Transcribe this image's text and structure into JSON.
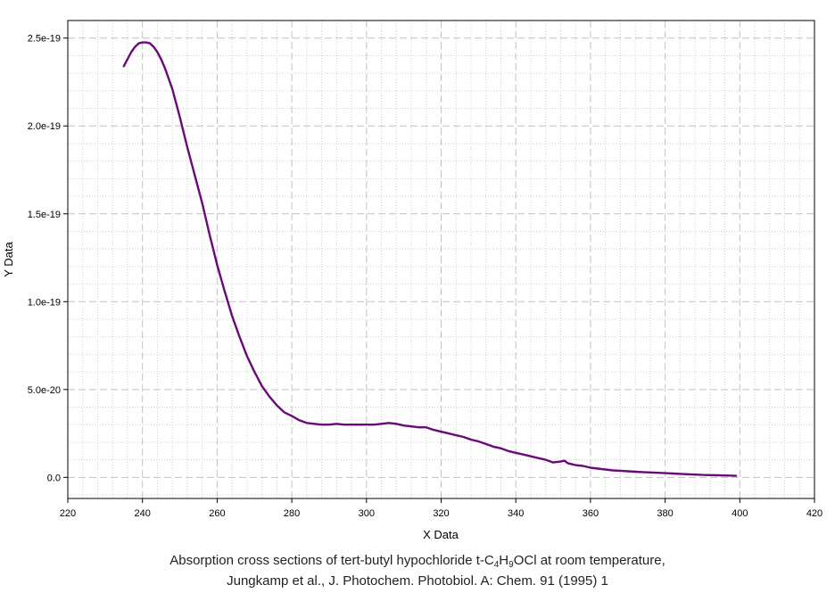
{
  "chart_data": {
    "type": "line",
    "xlabel": "X Data",
    "ylabel": "Y Data",
    "xlim": [
      220,
      420
    ],
    "ylim": [
      -1.2e-20,
      2.6e-19
    ],
    "x_ticks": [
      220,
      240,
      260,
      280,
      300,
      320,
      340,
      360,
      380,
      400,
      420
    ],
    "x_tick_labels": [
      "220",
      "240",
      "260",
      "280",
      "300",
      "320",
      "340",
      "360",
      "380",
      "400",
      "420"
    ],
    "y_ticks": [
      0,
      5e-20,
      1e-19,
      1.5e-19,
      2e-19,
      2.5e-19
    ],
    "y_tick_labels": [
      "0.0",
      "5.0e-20",
      "1.0e-19",
      "1.5e-19",
      "2.0e-19",
      "2.5e-19"
    ],
    "grid": true,
    "line_color": "#6a0a78",
    "series": [
      {
        "x": [
          235,
          237,
          238,
          239,
          240,
          241,
          242,
          243,
          244,
          245,
          246,
          247,
          248,
          249,
          250,
          252,
          254,
          256,
          258,
          260,
          262,
          264,
          266,
          268,
          270,
          272,
          274,
          276,
          278,
          280,
          282,
          284,
          286,
          288,
          290,
          292,
          294,
          296,
          298,
          300,
          302,
          304,
          306,
          308,
          310,
          312,
          314,
          316,
          318,
          320,
          322,
          324,
          326,
          328,
          330,
          332,
          334,
          336,
          338,
          340,
          342,
          344,
          346,
          348,
          350,
          352,
          353,
          354,
          356,
          358,
          360,
          362,
          364,
          366,
          368,
          370,
          372,
          374,
          376,
          378,
          380,
          382,
          384,
          386,
          388,
          390,
          392,
          394,
          396,
          398,
          399
        ],
        "y": [
          2.34e-19,
          2.42e-19,
          2.45e-19,
          2.47e-19,
          2.475e-19,
          2.475e-19,
          2.47e-19,
          2.45e-19,
          2.42e-19,
          2.38e-19,
          2.33e-19,
          2.27e-19,
          2.21e-19,
          2.13e-19,
          2.05e-19,
          1.88e-19,
          1.72e-19,
          1.56e-19,
          1.38e-19,
          1.21e-19,
          1.06e-19,
          9.2e-20,
          8e-20,
          6.9e-20,
          6e-20,
          5.2e-20,
          4.6e-20,
          4.1e-20,
          3.7e-20,
          3.5e-20,
          3.25e-20,
          3.1e-20,
          3.05e-20,
          3e-20,
          3e-20,
          3.05e-20,
          3e-20,
          3e-20,
          3e-20,
          3e-20,
          3e-20,
          3.05e-20,
          3.1e-20,
          3.05e-20,
          2.95e-20,
          2.9e-20,
          2.85e-20,
          2.85e-20,
          2.7e-20,
          2.6e-20,
          2.5e-20,
          2.4e-20,
          2.3e-20,
          2.15e-20,
          2.05e-20,
          1.9e-20,
          1.75e-20,
          1.65e-20,
          1.5e-20,
          1.4e-20,
          1.3e-20,
          1.2e-20,
          1.1e-20,
          1e-20,
          8.5e-21,
          9e-21,
          9.5e-21,
          8e-21,
          7e-21,
          6.5e-21,
          5.5e-21,
          5e-21,
          4.5e-21,
          4e-21,
          3.8e-21,
          3.5e-21,
          3.2e-21,
          3e-21,
          2.8e-21,
          2.6e-21,
          2.4e-21,
          2.2e-21,
          2e-21,
          1.8e-21,
          1.6e-21,
          1.4e-21,
          1.3e-21,
          1.2e-21,
          1.1e-21,
          1e-21,
          9e-22
        ]
      }
    ]
  },
  "caption": {
    "line1_prefix": "Absorption cross sections of tert-butyl hypochloride t-C",
    "sub1": "4",
    "mid": "H",
    "sub2": "9",
    "line1_suffix": "OCl at room temperature,",
    "line2": "Jungkamp et al., J. Photochem. Photobiol. A: Chem. 91 (1995) 1"
  }
}
